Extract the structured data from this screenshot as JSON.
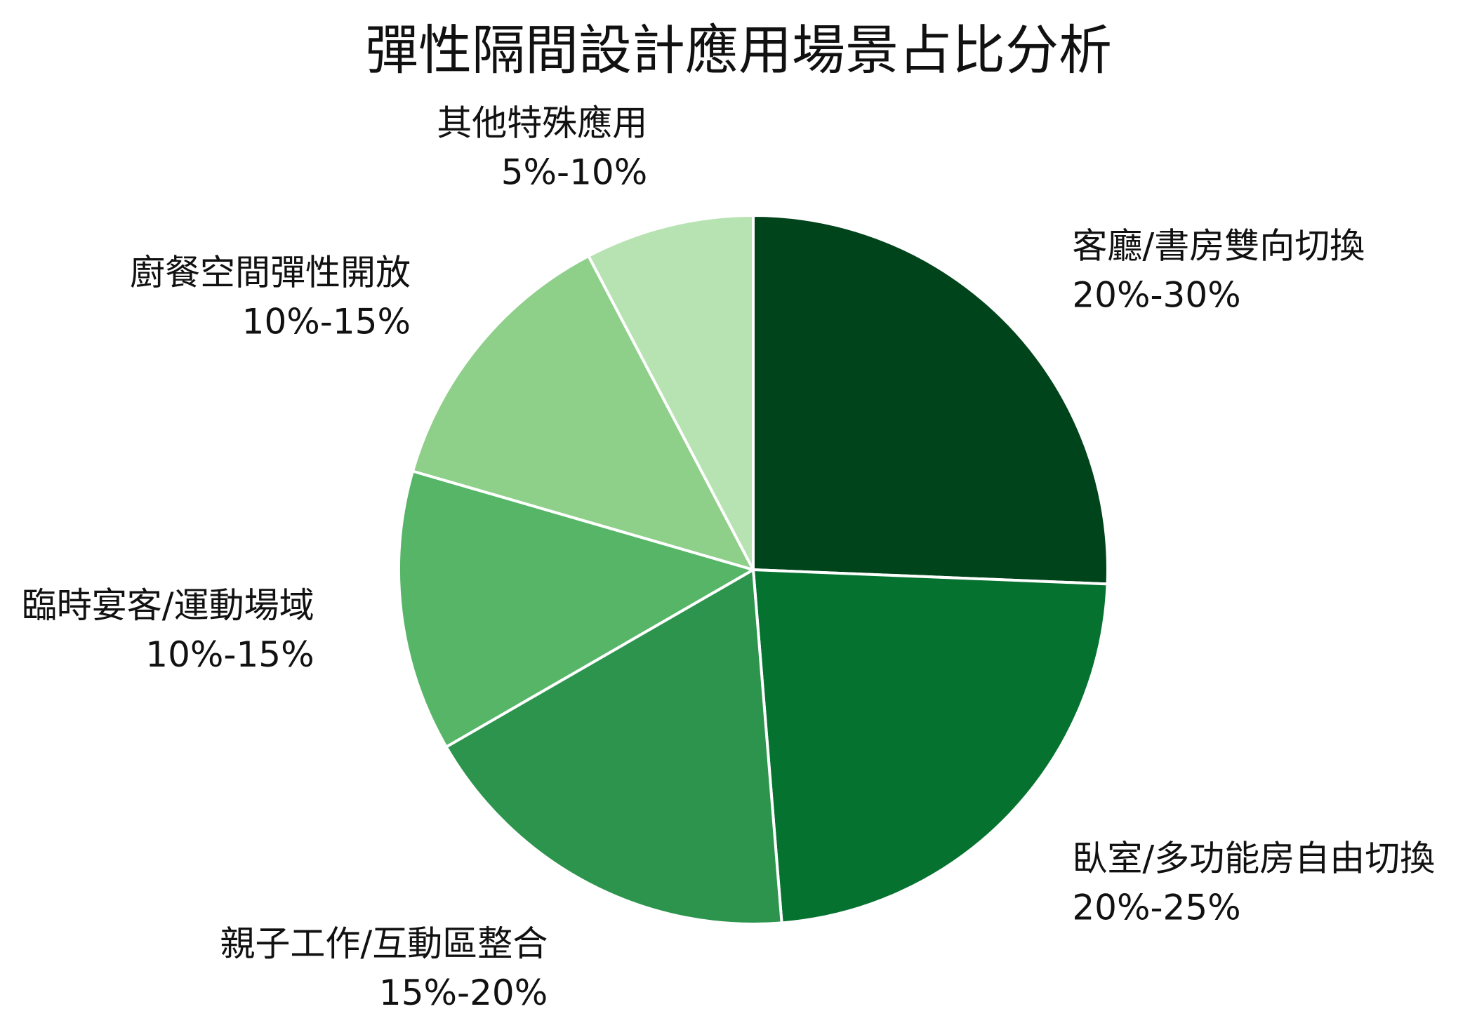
{
  "chart_data": {
    "type": "pie",
    "title": "彈性隔間設計應用場景占比分析",
    "slices": [
      {
        "name": "客廳/書房雙向切換",
        "range": "20%-30%",
        "value": 25,
        "color": "#00441b"
      },
      {
        "name": "臥室/多功能房自由切換",
        "range": "20%-25%",
        "value": 22.5,
        "color": "#067230"
      },
      {
        "name": "親子工作/互動區整合",
        "range": "15%-20%",
        "value": 17.5,
        "color": "#2c944d"
      },
      {
        "name": "臨時宴客/運動場域",
        "range": "10%-15%",
        "value": 12.5,
        "color": "#56b567"
      },
      {
        "name": "廚餐空間彈性開放",
        "range": "10%-15%",
        "value": 12.5,
        "color": "#8ecf89"
      },
      {
        "name": "其他特殊應用",
        "range": "5%-10%",
        "value": 7.5,
        "color": "#b7e3b2"
      }
    ],
    "start_angle": "12 o'clock",
    "direction": "clockwise",
    "legend": "none"
  }
}
